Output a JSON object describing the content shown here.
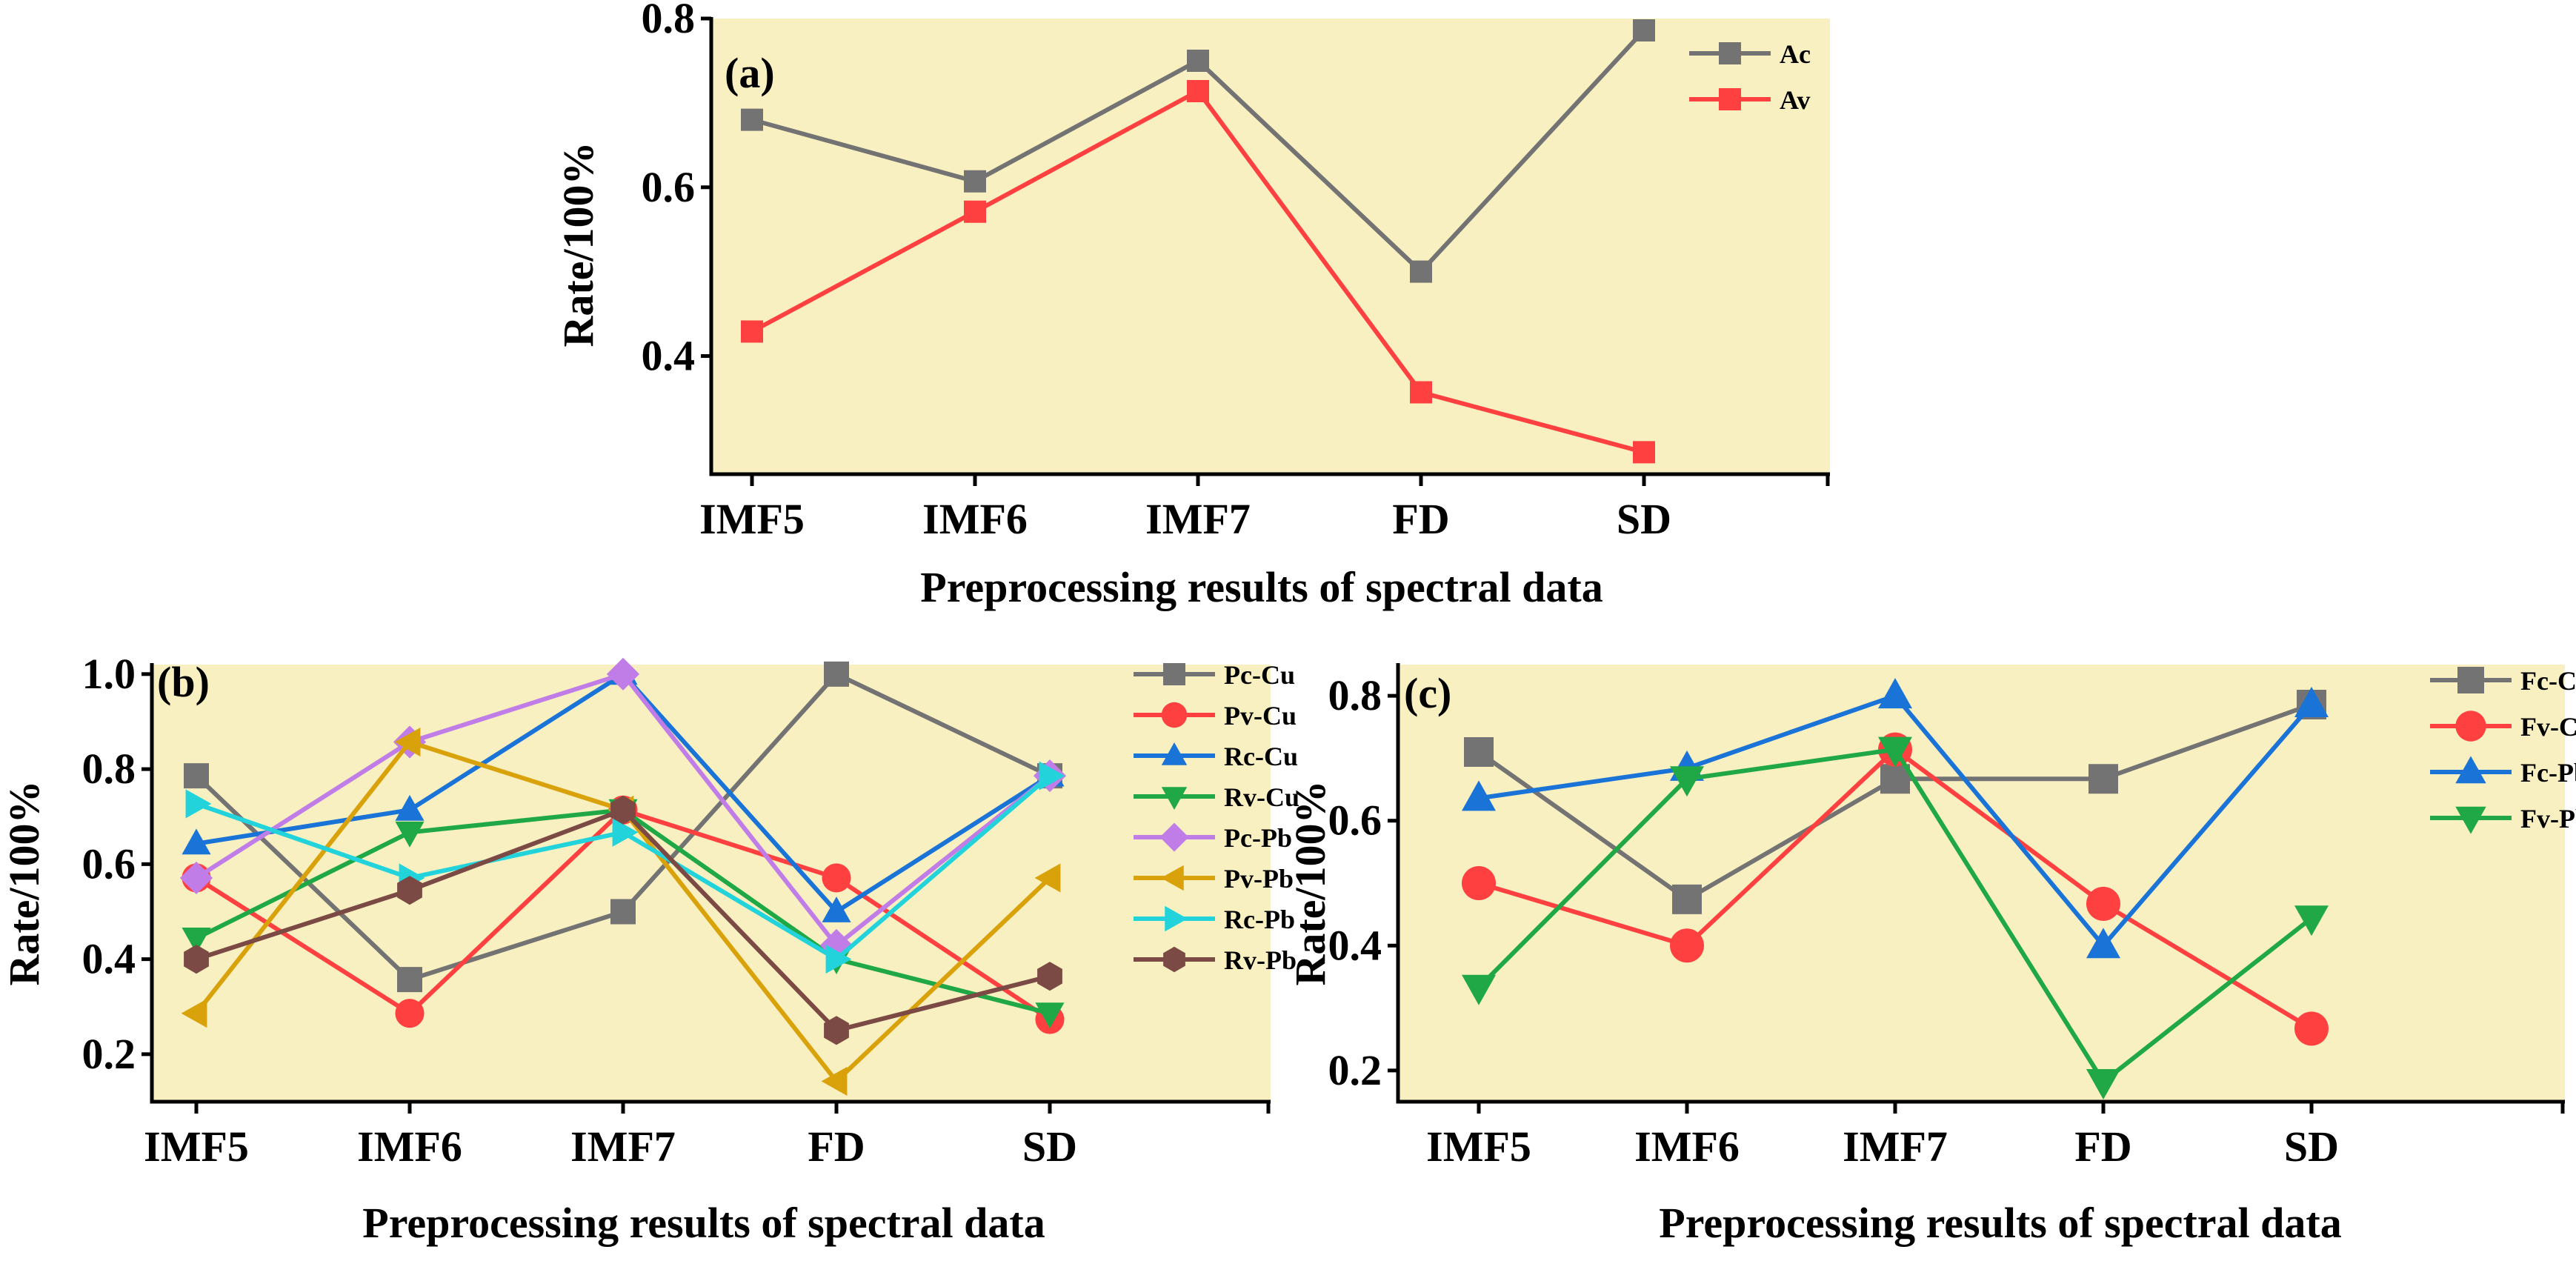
{
  "figure": {
    "description_free": true
  },
  "chart_data": [
    {
      "panel": "(a)",
      "type": "line",
      "categories": [
        "IMF5",
        "IMF6",
        "IMF7",
        "FD",
        "SD"
      ],
      "xlabel": "Preprocessing results of spectral data",
      "ylabel": "Rate/100%",
      "ylim": [
        0.26,
        0.8
      ],
      "yticks": [
        0.4,
        0.6,
        0.8
      ],
      "ytick_labels": [
        "0.4",
        "0.6",
        "0.8"
      ],
      "grid": false,
      "legend_position": "top-right",
      "series": [
        {
          "name": "Ac",
          "marker": "square",
          "color": "#737373",
          "values": [
            0.68,
            0.607,
            0.75,
            0.5,
            0.786
          ]
        },
        {
          "name": "Av",
          "marker": "square",
          "color": "#ff4040",
          "values": [
            0.429,
            0.571,
            0.714,
            0.357,
            0.286
          ]
        }
      ]
    },
    {
      "panel": "(b)",
      "type": "line",
      "categories": [
        "IMF5",
        "IMF6",
        "IMF7",
        "FD",
        "SD"
      ],
      "xlabel": "Preprocessing results of spectral data",
      "ylabel": "Rate/100%",
      "ylim": [
        0.1,
        1.02
      ],
      "yticks": [
        0.2,
        0.4,
        0.6,
        0.8,
        1.0
      ],
      "ytick_labels": [
        "0.2",
        "0.4",
        "0.6",
        "0.8",
        "1.0"
      ],
      "grid": false,
      "legend_position": "top-right",
      "series": [
        {
          "name": "Pc-Cu",
          "marker": "square",
          "color": "#737373",
          "values": [
            0.786,
            0.357,
            0.5,
            1.0,
            0.786
          ]
        },
        {
          "name": "Pv-Cu",
          "marker": "circle",
          "color": "#ff4040",
          "values": [
            0.571,
            0.286,
            0.714,
            0.571,
            0.273
          ]
        },
        {
          "name": "Rc-Cu",
          "marker": "triangle-up",
          "color": "#1a73d6",
          "values": [
            0.643,
            0.714,
            1.0,
            0.5,
            0.786
          ]
        },
        {
          "name": "Rv-Cu",
          "marker": "triangle-down",
          "color": "#1fa845",
          "values": [
            0.444,
            0.667,
            0.714,
            0.4,
            0.286
          ]
        },
        {
          "name": "Pc-Pb",
          "marker": "diamond",
          "color": "#c07de8",
          "values": [
            0.571,
            0.857,
            1.0,
            0.429,
            0.786
          ]
        },
        {
          "name": "Pv-Pb",
          "marker": "triangle-left",
          "color": "#d9a10a",
          "values": [
            0.286,
            0.857,
            0.714,
            0.143,
            0.571
          ]
        },
        {
          "name": "Rc-Pb",
          "marker": "triangle-right",
          "color": "#22d3db",
          "values": [
            0.727,
            0.571,
            0.667,
            0.4,
            0.786
          ]
        },
        {
          "name": "Rv-Pb",
          "marker": "hexagon",
          "color": "#7b4a45",
          "values": [
            0.4,
            0.545,
            0.714,
            0.25,
            0.364
          ]
        }
      ]
    },
    {
      "panel": "(c)",
      "type": "line",
      "categories": [
        "IMF5",
        "IMF6",
        "IMF7",
        "FD",
        "SD"
      ],
      "xlabel": "Preprocessing results of spectral data",
      "ylabel": "Rate/100%",
      "ylim": [
        0.15,
        0.85
      ],
      "yticks": [
        0.2,
        0.4,
        0.6,
        0.8
      ],
      "ytick_labels": [
        "0.2",
        "0.4",
        "0.6",
        "0.8"
      ],
      "grid": false,
      "legend_position": "top-right",
      "series": [
        {
          "name": "Fc-Cu",
          "marker": "square",
          "color": "#737373",
          "values": [
            0.71,
            0.474,
            0.667,
            0.667,
            0.786
          ]
        },
        {
          "name": "Fv-Cu",
          "marker": "circle",
          "color": "#ff4040",
          "values": [
            0.5,
            0.4,
            0.714,
            0.467,
            0.267
          ]
        },
        {
          "name": "Fc-Pb",
          "marker": "triangle-up",
          "color": "#1a73d6",
          "values": [
            0.636,
            0.684,
            0.8,
            0.4,
            0.786
          ]
        },
        {
          "name": "Fv-Pb",
          "marker": "triangle-down",
          "color": "#1fa845",
          "values": [
            0.333,
            0.667,
            0.714,
            0.182,
            0.444
          ]
        }
      ]
    }
  ]
}
